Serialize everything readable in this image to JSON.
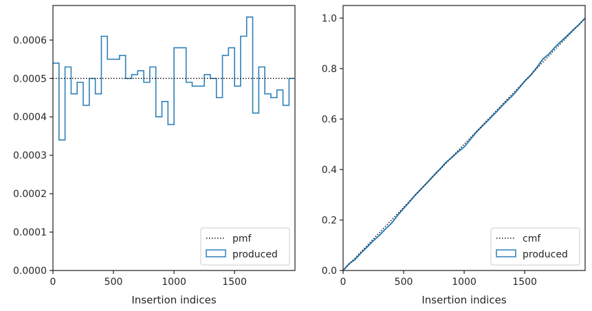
{
  "colors": {
    "produced": "#2c7fb8",
    "reference": "#111111",
    "axes": "#262626",
    "legend_border": "#cccccc"
  },
  "chart_data": [
    {
      "type": "line",
      "xlabel": "Insertion indices",
      "ylabel": "",
      "xlim": [
        0,
        1999
      ],
      "ylim": [
        0,
        0.00069
      ],
      "xticks": [
        0,
        500,
        1000,
        1500
      ],
      "xtick_labels": [
        "0",
        "500",
        "1000",
        "1500"
      ],
      "yticks": [
        0,
        0.0001,
        0.0002,
        0.0003,
        0.0004,
        0.0005,
        0.0006
      ],
      "ytick_labels": [
        "0.0000",
        "0.0001",
        "0.0002",
        "0.0003",
        "0.0004",
        "0.0005",
        "0.0006"
      ],
      "grid": false,
      "legend_position": "bottom-right",
      "series": [
        {
          "name": "pmf",
          "style": "dotted",
          "x": [
            0,
            1999
          ],
          "y": [
            0.0005,
            0.0005
          ]
        },
        {
          "name": "produced",
          "style": "step",
          "bin_edges": [
            0,
            50,
            100,
            150,
            200,
            250,
            300,
            350,
            400,
            450,
            500,
            550,
            600,
            650,
            700,
            750,
            800,
            850,
            900,
            950,
            1000,
            1050,
            1100,
            1150,
            1200,
            1250,
            1300,
            1350,
            1400,
            1450,
            1500,
            1550,
            1600,
            1650,
            1700,
            1750,
            1800,
            1850,
            1900,
            1950,
            1999
          ],
          "values": [
            0.00054,
            0.00034,
            0.00053,
            0.00046,
            0.00049,
            0.00043,
            0.0005,
            0.00046,
            0.00061,
            0.00055,
            0.00055,
            0.00056,
            0.0005,
            0.00051,
            0.00052,
            0.00049,
            0.00053,
            0.0004,
            0.00044,
            0.00038,
            0.00058,
            0.00058,
            0.00049,
            0.00048,
            0.00048,
            0.00051,
            0.0005,
            0.00045,
            0.00056,
            0.00058,
            0.00048,
            0.00061,
            0.00066,
            0.00041,
            0.00053,
            0.00046,
            0.00045,
            0.00047,
            0.00043,
            0.0005
          ]
        }
      ]
    },
    {
      "type": "line",
      "xlabel": "Insertion indices",
      "ylabel": "",
      "xlim": [
        0,
        1999
      ],
      "ylim": [
        0,
        1.05
      ],
      "xticks": [
        0,
        500,
        1000,
        1500
      ],
      "xtick_labels": [
        "0",
        "500",
        "1000",
        "1500"
      ],
      "yticks": [
        0,
        0.2,
        0.4,
        0.6,
        0.8,
        1.0
      ],
      "ytick_labels": [
        "0.0",
        "0.2",
        "0.4",
        "0.6",
        "0.8",
        "1.0"
      ],
      "grid": false,
      "legend_position": "bottom-right",
      "series": [
        {
          "name": "cmf",
          "style": "dotted",
          "x": [
            0,
            1999
          ],
          "y": [
            0,
            1.0
          ]
        },
        {
          "name": "produced",
          "style": "solid",
          "derived_from": "cumulative sum of left-panel produced histogram"
        }
      ]
    }
  ]
}
